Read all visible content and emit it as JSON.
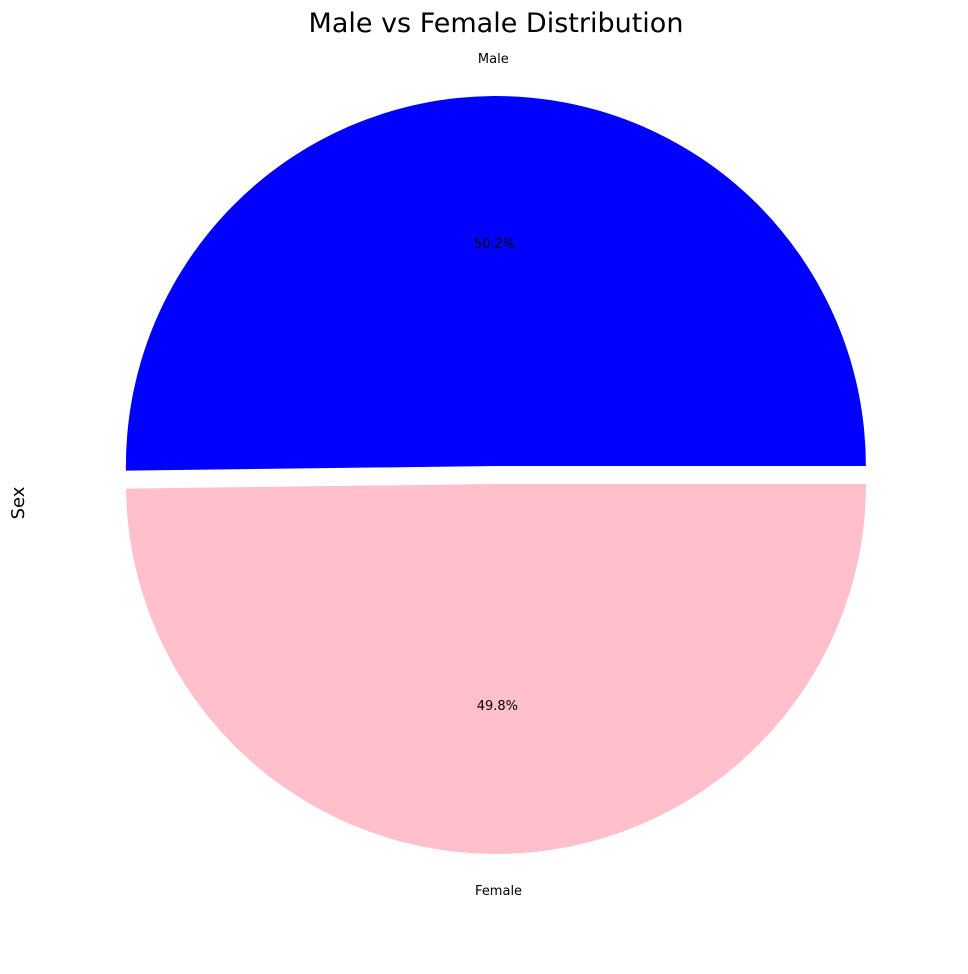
{
  "chart_data": {
    "type": "pie",
    "title": "Male vs Female Distribution",
    "ylabel": "Sex",
    "slices": [
      {
        "label": "Male",
        "value": 50.2,
        "pct_label": "50.2%",
        "color": "#0000ff",
        "exploded": true
      },
      {
        "label": "Female",
        "value": 49.8,
        "pct_label": "49.8%",
        "color": "#ffc0cb",
        "exploded": false
      }
    ],
    "start_angle_deg": 0,
    "direction": "counterclockwise",
    "legend": "none"
  }
}
